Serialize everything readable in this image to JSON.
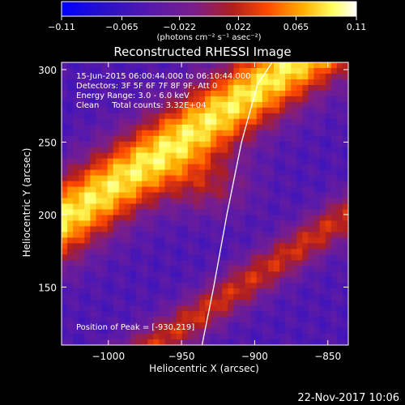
{
  "chart_data": {
    "type": "heatmap",
    "title": "Reconstructed RHESSI Image",
    "xlabel": "Heliocentric X (arcsec)",
    "ylabel": "Heliocentric Y (arcsec)",
    "xlim": [
      -1032,
      -836
    ],
    "ylim": [
      110,
      305
    ],
    "x_ticks": [
      -1000,
      -950,
      -900,
      -850
    ],
    "y_ticks": [
      150,
      200,
      250,
      300
    ],
    "x_tick_labels": [
      "−1000",
      "−950",
      "−900",
      "−850"
    ],
    "y_tick_labels": [
      "150",
      "200",
      "250",
      "300"
    ],
    "colorbar": {
      "range": [
        -0.11,
        0.11
      ],
      "tick_labels": [
        "−0.11",
        "−0.065",
        "−0.022",
        "0.022",
        "0.065",
        "0.11"
      ],
      "unit_label": "(photons cm⁻² s⁻¹ asec⁻²)"
    },
    "annotations": [
      "15-Jun-2015 06:00:44.000 to 06:10:44.000",
      "Detectors: 3F 5F 6F 7F 8F 9F, Att 0",
      "Energy Range: 3.0 - 6.0 keV",
      "Clean     Total counts: 3.32E+04"
    ],
    "peak_label": "Position of Peak = [-930,219]",
    "peak": [
      -930,
      219
    ],
    "limb_curve_x": [
      -936,
      -928,
      -919,
      -909,
      -898,
      -888
    ],
    "limb_curve_y": [
      110,
      150,
      200,
      250,
      290,
      305
    ],
    "bands": [
      {
        "x0": -1032,
        "y0": 196,
        "slope": 0.68,
        "width": 38,
        "amplitude": 1.0
      },
      {
        "x0": -1032,
        "y0": 67,
        "slope": 0.68,
        "width": 22,
        "amplitude": 0.55
      }
    ]
  },
  "footer": {
    "date": "22-Nov-2017 10:06"
  },
  "colors": {
    "background": "#000000",
    "colormap": [
      "#0000ff",
      "#3010c0",
      "#5b1aa8",
      "#7a1e8a",
      "#b01e1e",
      "#ff4a00",
      "#ffb000",
      "#ffff60",
      "#ffffff"
    ]
  }
}
